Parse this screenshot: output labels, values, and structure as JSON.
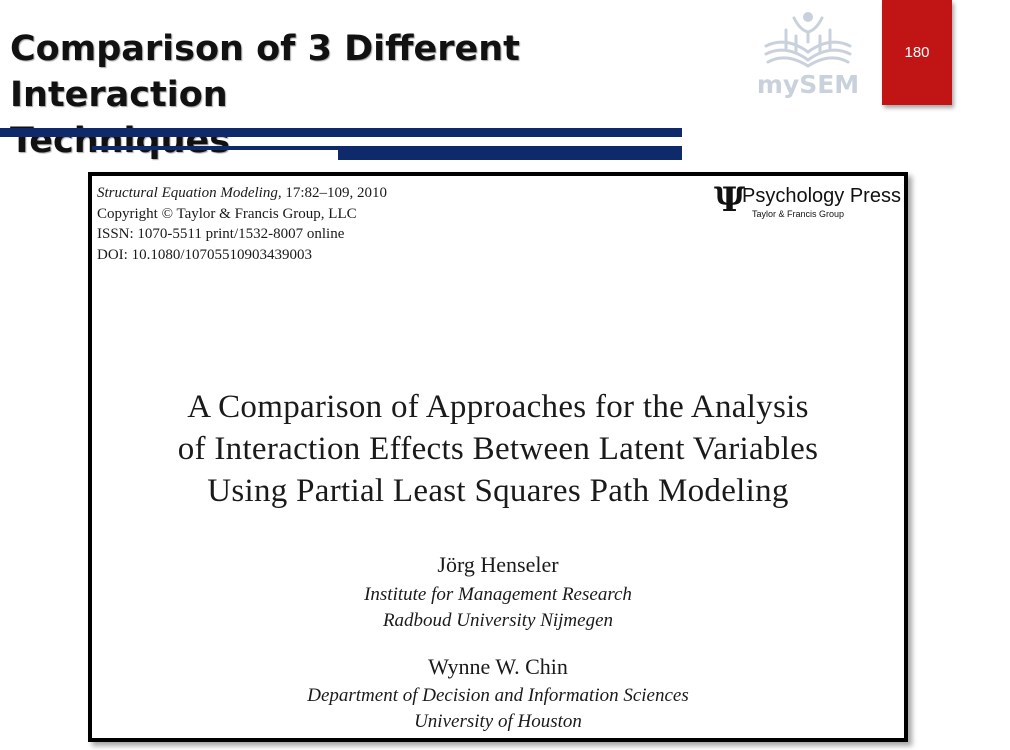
{
  "slide": {
    "title_lines": [
      "Comparison of 3 Different Interaction",
      "Techniques"
    ],
    "page_number": "180",
    "logo_text": "mySEM",
    "colors": {
      "rule": "#0f2a6b",
      "page_box": "#c11414",
      "logo": "#c9d1dc"
    }
  },
  "paper": {
    "journal": "Structural Equation Modeling",
    "journal_details": ", 17:82–109, 2010",
    "copyright": "Copyright © Taylor & Francis Group, LLC",
    "issn": "ISSN: 1070-5511 print/1532-8007 online",
    "doi": "DOI: 10.1080/10705510903439003",
    "publisher": {
      "symbol": "Ψ",
      "name": "Psychology Press",
      "sub": "Taylor & Francis Group"
    },
    "title_lines": [
      "A Comparison of Approaches for the Analysis",
      "of Interaction Effects Between Latent Variables",
      "Using Partial Least Squares Path Modeling"
    ],
    "authors": [
      {
        "name": "Jörg Henseler",
        "affiliation": [
          "Institute for Management Research",
          "Radboud University Nijmegen"
        ]
      },
      {
        "name": "Wynne W. Chin",
        "affiliation": [
          "Department of Decision and Information Sciences",
          "University of Houston"
        ]
      }
    ]
  }
}
